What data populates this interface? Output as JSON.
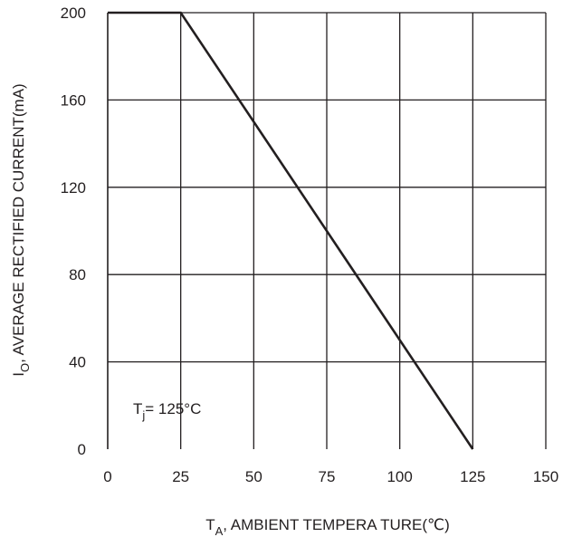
{
  "chart_data": {
    "type": "line",
    "xlabel": {
      "main": "T",
      "sub": "A",
      "rest": ", AMBIENT  TEMPERA TURE(℃)"
    },
    "ylabel": {
      "main": "I",
      "sub": "O",
      "rest": ", AVERAGE  RECTIFIED  CURRENT(mA)"
    },
    "xlim": [
      0,
      150
    ],
    "ylim": [
      0,
      200
    ],
    "x_ticks": [
      0,
      25,
      50,
      75,
      100,
      125,
      150
    ],
    "y_ticks": [
      0,
      40,
      80,
      120,
      160,
      200
    ],
    "grid": true,
    "series": [
      {
        "x": [
          0,
          25,
          125
        ],
        "y": [
          200,
          200,
          0
        ]
      }
    ],
    "annotation": {
      "main": "T",
      "sub": "j",
      "rest": "= 125°C"
    },
    "colors": {
      "line": "#231f20",
      "grid": "#231f20",
      "text": "#231f20"
    }
  }
}
